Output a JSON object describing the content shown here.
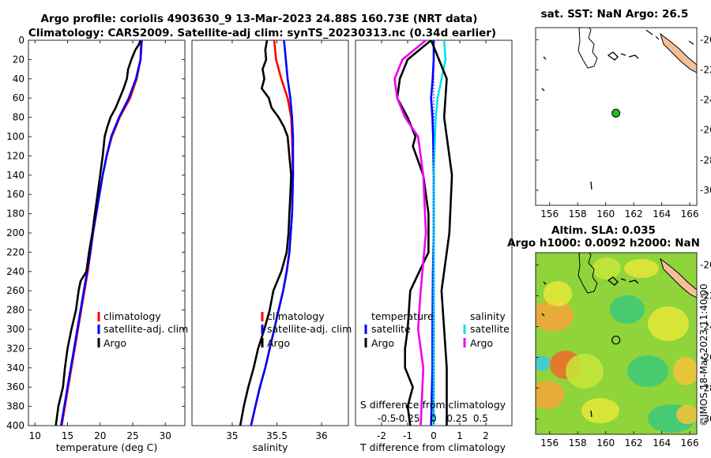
{
  "header": {
    "title_line1": "Argo profile: coriolis 4903630_9 13-Mar-2023 24.88S 160.73E (NRT data)",
    "title_line2": "Climatology: CARS2009. Satellite-adj clim: synTS_20230313.nc (0.34d earlier)"
  },
  "credit": "©IMOS 18-Mar-2023 11:40:00",
  "colors": {
    "climatology": "#ff0000",
    "satellite": "#0000ff",
    "argo": "#000000",
    "salinity_satellite": "#00e5ee",
    "salinity_argo": "#ee00ee",
    "land": "#f4c09a",
    "float_marker": "#22bb22"
  },
  "chart_data": [
    {
      "id": "temperature",
      "type": "line",
      "xlabel": "temperature (deg C)",
      "ylabel": "",
      "xlim": [
        9,
        33
      ],
      "ylim": [
        0,
        400
      ],
      "y_reversed": true,
      "xticks": [
        10,
        15,
        20,
        25,
        30
      ],
      "yticks": [
        0,
        20,
        40,
        60,
        80,
        100,
        120,
        140,
        160,
        180,
        200,
        220,
        240,
        260,
        280,
        300,
        320,
        340,
        360,
        380,
        400
      ],
      "legend": [
        "climatology",
        "satellite-adj. clim",
        "Argo"
      ],
      "legend_position": "lower-right",
      "series": [
        {
          "name": "climatology",
          "color": "#ff0000",
          "depth": [
            0,
            20,
            40,
            60,
            80,
            100,
            120,
            140,
            160,
            180,
            200,
            220,
            240,
            260,
            280,
            300,
            320,
            340,
            360,
            380,
            400
          ],
          "values": [
            26.3,
            26.2,
            25.6,
            24.6,
            23.0,
            21.8,
            21.0,
            20.4,
            19.9,
            19.4,
            18.9,
            18.5,
            18.1,
            17.6,
            17.1,
            16.6,
            16.1,
            15.6,
            15.1,
            14.6,
            14.1
          ]
        },
        {
          "name": "satellite-adj. clim",
          "color": "#0000ff",
          "depth": [
            0,
            20,
            40,
            60,
            80,
            100,
            120,
            140,
            160,
            180,
            200,
            220,
            240,
            260,
            280,
            300,
            320,
            340,
            360,
            380,
            400
          ],
          "values": [
            26.4,
            26.2,
            25.5,
            24.4,
            22.9,
            21.7,
            21.0,
            20.4,
            19.9,
            19.4,
            18.9,
            18.5,
            18.0,
            17.5,
            17.0,
            16.5,
            16.0,
            15.5,
            15.0,
            14.5,
            14.0
          ]
        },
        {
          "name": "Argo",
          "color": "#000000",
          "depth": [
            0,
            5,
            10,
            20,
            30,
            40,
            50,
            60,
            70,
            80,
            90,
            100,
            120,
            140,
            160,
            180,
            200,
            220,
            240,
            250,
            260,
            280,
            300,
            320,
            340,
            360,
            380,
            400
          ],
          "values": [
            26.2,
            25.9,
            25.4,
            24.8,
            24.3,
            24.1,
            23.6,
            23.0,
            22.4,
            21.6,
            21.1,
            20.7,
            20.4,
            20.0,
            19.6,
            19.2,
            18.8,
            18.3,
            17.9,
            17.0,
            16.7,
            16.3,
            15.6,
            15.0,
            14.6,
            14.3,
            13.6,
            13.2
          ]
        }
      ]
    },
    {
      "id": "salinity",
      "type": "line",
      "xlabel": "salinity",
      "ylabel": "",
      "xlim": [
        34.55,
        36.3
      ],
      "ylim": [
        0,
        400
      ],
      "y_reversed": true,
      "xticks": [
        35,
        35.5,
        36
      ],
      "legend": [
        "climatology",
        "satellite-adj. clim",
        "Argo"
      ],
      "legend_position": "lower-right",
      "series": [
        {
          "name": "climatology",
          "color": "#ff0000",
          "depth": [
            0,
            20,
            40,
            60,
            80,
            100,
            140,
            180,
            220,
            240,
            260,
            280,
            300,
            320,
            340,
            360,
            380,
            400
          ],
          "values": [
            35.47,
            35.49,
            35.55,
            35.62,
            35.66,
            35.67,
            35.68,
            35.67,
            35.64,
            35.61,
            35.57,
            35.52,
            35.47,
            35.42,
            35.37,
            35.31,
            35.26,
            35.21
          ]
        },
        {
          "name": "satellite-adj. clim",
          "color": "#0000ff",
          "depth": [
            0,
            20,
            40,
            60,
            80,
            100,
            140,
            180,
            220,
            240,
            260,
            280,
            300,
            320,
            340,
            360,
            380,
            400
          ],
          "values": [
            35.58,
            35.6,
            35.62,
            35.65,
            35.67,
            35.68,
            35.68,
            35.67,
            35.64,
            35.61,
            35.57,
            35.52,
            35.47,
            35.42,
            35.37,
            35.31,
            35.26,
            35.21
          ]
        },
        {
          "name": "Argo",
          "color": "#000000",
          "depth": [
            0,
            10,
            20,
            30,
            40,
            50,
            60,
            70,
            80,
            90,
            100,
            120,
            140,
            160,
            180,
            200,
            220,
            240,
            260,
            280,
            300,
            320,
            340,
            360,
            380,
            400
          ],
          "values": [
            35.39,
            35.37,
            35.38,
            35.34,
            35.36,
            35.33,
            35.41,
            35.44,
            35.52,
            35.58,
            35.62,
            35.64,
            35.66,
            35.65,
            35.64,
            35.63,
            35.61,
            35.55,
            35.46,
            35.42,
            35.36,
            35.29,
            35.24,
            35.18,
            35.13,
            35.09
          ]
        }
      ]
    },
    {
      "id": "difference",
      "type": "line",
      "xlabel": "T difference from climatology",
      "xlabel_top": "S difference from climatology",
      "ylabel": "",
      "xlim": [
        -3,
        3
      ],
      "ylim": [
        0,
        400
      ],
      "y_reversed": true,
      "xticks": [
        -2,
        -1,
        0,
        1,
        2
      ],
      "xticks_salinity": [
        "-0.5",
        "-0.25",
        "0",
        "0.25",
        "0.5"
      ],
      "legend_temperature_title": "temperature",
      "legend_salinity_title": "salinity",
      "legend_temperature": [
        "satellite",
        "Argo"
      ],
      "legend_salinity": [
        "satellite",
        "Argo"
      ],
      "legend_position": "lower",
      "series": [
        {
          "name": "temperature satellite",
          "color": "#0000ff",
          "depth": [
            0,
            20,
            40,
            60,
            80,
            100,
            140,
            200,
            240,
            300,
            340,
            400
          ],
          "values": [
            0.0,
            0.0,
            -0.04,
            -0.1,
            -0.05,
            -0.02,
            0.0,
            0.0,
            -0.03,
            -0.05,
            -0.05,
            -0.1
          ]
        },
        {
          "name": "temperature Argo",
          "color": "#000000",
          "depth": [
            0,
            20,
            40,
            60,
            80,
            100,
            110,
            140,
            180,
            220,
            260,
            300,
            320,
            340,
            360,
            380,
            400
          ],
          "values": [
            -0.1,
            -1.0,
            -1.3,
            -1.4,
            -1.0,
            -0.7,
            -0.8,
            -0.4,
            -0.2,
            -0.2,
            -0.9,
            -1.0,
            -1.1,
            -1.1,
            -0.8,
            -1.0,
            -0.9
          ]
        },
        {
          "name": "salinity satellite",
          "color": "#00e5ee",
          "depth": [
            0,
            20,
            40,
            60,
            80,
            100,
            140,
            200,
            300,
            400
          ],
          "values": [
            0.4,
            0.45,
            0.3,
            0.15,
            0.08,
            0.05,
            0.0,
            0.0,
            0.0,
            0.0
          ]
        },
        {
          "name": "salinity Argo",
          "color": "#ee00ee",
          "depth": [
            0,
            20,
            40,
            60,
            80,
            100,
            140,
            200,
            260,
            300,
            340,
            400
          ],
          "values": [
            -0.3,
            -1.2,
            -1.5,
            -1.4,
            -1.1,
            -0.6,
            -0.4,
            -0.3,
            -0.5,
            -0.6,
            -0.4,
            -0.5
          ]
        },
        {
          "name": "zero line",
          "color": "#0000ff",
          "depth": [
            0,
            400
          ],
          "values": [
            0,
            0
          ]
        },
        {
          "name": "salinity Argo (right trace)",
          "color": "#000000",
          "depth": [
            0,
            40,
            80,
            100,
            140,
            200,
            260,
            300,
            340,
            400
          ],
          "values": [
            -0.1,
            0.5,
            0.4,
            0.5,
            0.7,
            0.6,
            0.3,
            0.4,
            0.5,
            0.5
          ]
        }
      ]
    },
    {
      "id": "sst_map",
      "type": "heatmap",
      "title": "sat. SST: NaN Argo: 26.5",
      "xlim": [
        155,
        166.5
      ],
      "ylim": [
        -31,
        -19.2
      ],
      "xticks": [
        156,
        158,
        160,
        162,
        164,
        166
      ],
      "yticks": [
        -20,
        -22,
        -24,
        -26,
        -28,
        -30
      ],
      "float_position": {
        "lon": 160.73,
        "lat": -24.88
      }
    },
    {
      "id": "sla_map",
      "type": "heatmap",
      "title_line1": "Altim. SLA: 0.035",
      "title_line2": "Argo h1000: 0.0092 h2000: NaN",
      "xlim": [
        155,
        166.5
      ],
      "ylim": [
        -31,
        -19.2
      ],
      "xticks": [
        156,
        158,
        160,
        162,
        164,
        166
      ],
      "yticks": [
        -20,
        -22,
        -24,
        -26,
        -28,
        -30
      ],
      "float_position": {
        "lon": 160.73,
        "lat": -24.88
      }
    }
  ]
}
